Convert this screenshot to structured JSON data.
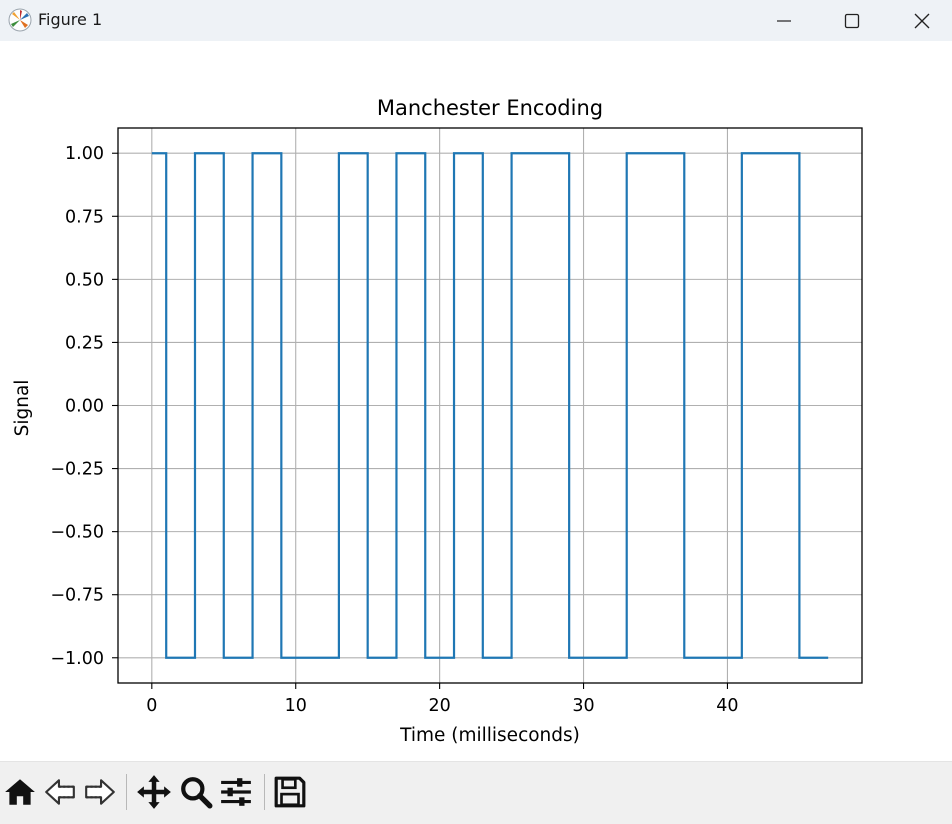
{
  "window": {
    "title": "Figure 1",
    "icons": {
      "app": "matplotlib-icon",
      "minimize": "minimize-icon",
      "maximize": "maximize-icon",
      "close": "close-icon"
    }
  },
  "toolbar": {
    "buttons": [
      {
        "name": "home-button",
        "icon": "home-icon"
      },
      {
        "name": "back-button",
        "icon": "back-arrow-icon"
      },
      {
        "name": "forward-button",
        "icon": "forward-arrow-icon"
      },
      {
        "name": "pan-button",
        "icon": "move-icon"
      },
      {
        "name": "zoom-button",
        "icon": "zoom-icon"
      },
      {
        "name": "configure-subplots-button",
        "icon": "sliders-icon"
      },
      {
        "name": "save-button",
        "icon": "save-icon"
      }
    ]
  },
  "chart_data": {
    "type": "line",
    "step": "post",
    "title": "Manchester Encoding",
    "xlabel": "Time (milliseconds)",
    "ylabel": "Signal",
    "xlim": [
      -2.35,
      49.35
    ],
    "ylim": [
      -1.1,
      1.1
    ],
    "xticks": [
      0,
      10,
      20,
      30,
      40
    ],
    "xtick_labels": [
      "0",
      "10",
      "20",
      "30",
      "40"
    ],
    "yticks": [
      1.0,
      0.75,
      0.5,
      0.25,
      0.0,
      -0.25,
      -0.5,
      -0.75,
      -1.0
    ],
    "ytick_labels": [
      "1.00",
      "0.75",
      "0.50",
      "0.25",
      "0.00",
      "−0.25",
      "−0.50",
      "−0.75",
      "−1.00"
    ],
    "grid": true,
    "line_color": "#1f77b4",
    "series": [
      {
        "x": [
          0,
          1,
          3,
          5,
          7,
          9,
          13,
          15,
          17,
          19,
          21,
          23,
          25,
          29,
          33,
          37,
          41,
          45,
          47
        ],
        "y": [
          1,
          -1,
          1,
          -1,
          1,
          -1,
          1,
          -1,
          1,
          -1,
          1,
          -1,
          1,
          -1,
          1,
          -1,
          1,
          -1,
          -1
        ]
      }
    ]
  }
}
